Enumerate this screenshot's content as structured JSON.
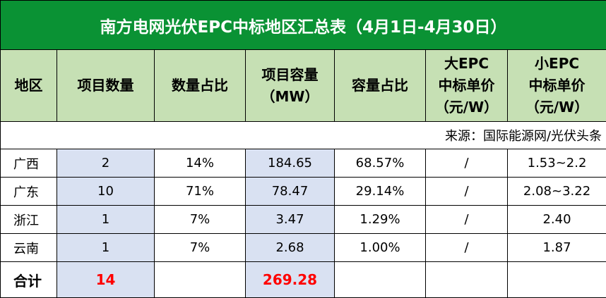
{
  "title": "南方电网光伏EPC中标地区汇总表（4月1日-4月30日）",
  "headers": [
    [
      "地区"
    ],
    [
      "项目数量"
    ],
    [
      "数量占比"
    ],
    [
      "项目容量",
      "（MW）"
    ],
    [
      "容量占比"
    ],
    [
      "大EPC",
      "中标单价",
      "（元/W）"
    ],
    [
      "小EPC",
      "中标单价",
      "（元/W）"
    ]
  ],
  "source": "来源：国际能源网/光伏头条",
  "rows": [
    [
      "广西",
      "2",
      "14%",
      "184.65",
      "68.57%",
      "/",
      "1.53~2.2"
    ],
    [
      "广东",
      "10",
      "71%",
      "78.47",
      "29.14%",
      "/",
      "2.08~3.22"
    ],
    [
      "浙江",
      "1",
      "7%",
      "3.47",
      "1.29%",
      "/",
      "2.40"
    ],
    [
      "云南",
      "1",
      "7%",
      "2.68",
      "1.00%",
      "/",
      "1.87"
    ]
  ],
  "total": {
    "label": "合计",
    "count": "14",
    "capacity": "269.28"
  }
}
